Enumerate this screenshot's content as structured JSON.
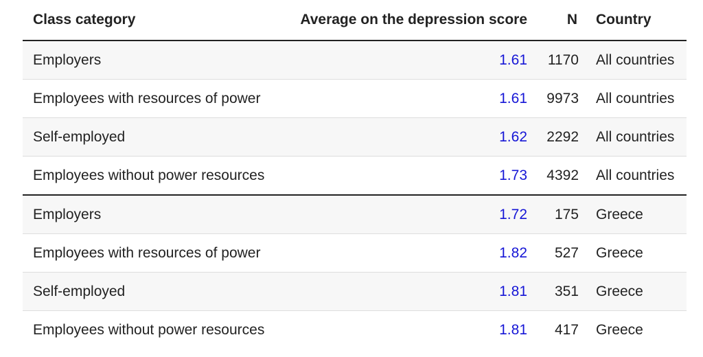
{
  "table": {
    "columns": [
      "Class category",
      "Average on the depression score",
      "N",
      "Country"
    ],
    "rows": [
      [
        "Employers",
        1.61,
        1170,
        "All countries"
      ],
      [
        "Employees with resources of power",
        1.61,
        9973,
        "All countries"
      ],
      [
        "Self-employed",
        1.62,
        2292,
        "All countries"
      ],
      [
        "Employees without power resources",
        1.73,
        4392,
        "All countries"
      ],
      [
        "Employers",
        1.72,
        175,
        "Greece"
      ],
      [
        "Employees with resources of power",
        1.82,
        527,
        "Greece"
      ],
      [
        "Self-employed",
        1.81,
        351,
        "Greece"
      ],
      [
        "Employees without power resources",
        1.81,
        417,
        "Greece"
      ]
    ]
  }
}
